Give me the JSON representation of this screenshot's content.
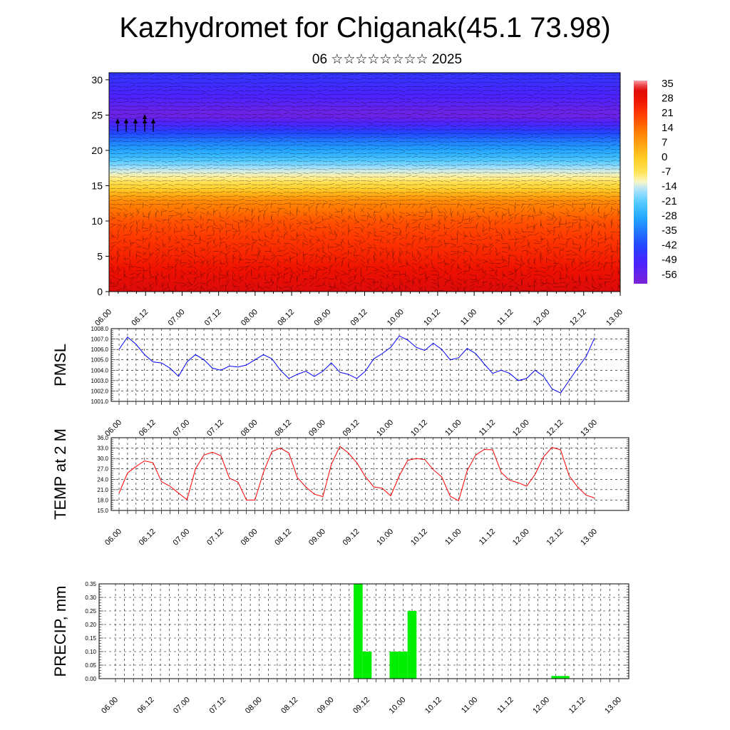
{
  "title": "Kazhydromet for Chiganak(45.1 73.98)",
  "subtitle": "06 ☆☆☆☆☆☆☆☆ 2025",
  "colors": {
    "pressure_line": "#0000ff",
    "temperature_line": "#ff0000",
    "precip_bar": "#00ee00"
  },
  "chart_data": [
    {
      "id": "cross_section",
      "type": "heatmap",
      "description_hint": "Time-height section of temperature (color) with wind barbs",
      "x_tick_labels": [
        "06.00",
        "06.12",
        "07.00",
        "07.12",
        "08.00",
        "08.12",
        "09.00",
        "09.12",
        "10.00",
        "10.12",
        "11.00",
        "11.12",
        "12.00",
        "12.12",
        "13.00"
      ],
      "y_ticks": [
        0,
        5,
        10,
        15,
        20,
        25,
        30
      ],
      "ylim": [
        0,
        31
      ],
      "colorbar": {
        "labels": [
          "35",
          "28",
          "21",
          "14",
          "7",
          "0",
          "-7",
          "-14",
          "-21",
          "-28",
          "-35",
          "-42",
          "-49",
          "-56"
        ],
        "range": [
          -60,
          37
        ]
      },
      "temperature_profile": {
        "height": [
          0,
          5,
          10,
          13,
          15,
          17,
          19,
          21,
          23,
          25,
          27,
          29,
          31
        ],
        "value": [
          33,
          25,
          18,
          10,
          -4,
          -13,
          -24,
          -33,
          -45,
          -58,
          -52,
          -48,
          -45
        ]
      }
    },
    {
      "id": "pmsl",
      "type": "line",
      "ylabel": "PMSL",
      "ylim": [
        1001.0,
        1008.0
      ],
      "y_tick_labels": [
        "1001.0",
        "1002.0",
        "1003.0",
        "1004.0",
        "1005.0",
        "1006.0",
        "1007.0",
        "1008.0"
      ],
      "x_tick_labels": [
        "06.00",
        "06.12",
        "07.00",
        "07.12",
        "08.00",
        "08.12",
        "09.00",
        "09.12",
        "10.00",
        "10.12",
        "11.00",
        "11.12",
        "12.00",
        "12.12",
        "13.00"
      ],
      "x_step_hours": 3,
      "values": [
        1006.0,
        1007.2,
        1006.5,
        1005.5,
        1004.8,
        1004.7,
        1004.2,
        1003.4,
        1004.8,
        1005.5,
        1005.0,
        1004.2,
        1004.0,
        1004.4,
        1004.3,
        1004.5,
        1005.0,
        1005.5,
        1005.1,
        1004.0,
        1003.2,
        1003.6,
        1003.9,
        1003.4,
        1003.9,
        1004.7,
        1003.8,
        1003.6,
        1003.2,
        1003.9,
        1005.1,
        1005.6,
        1006.2,
        1007.3,
        1006.9,
        1006.2,
        1005.9,
        1006.6,
        1006.0,
        1005.0,
        1005.2,
        1006.1,
        1005.6,
        1004.6,
        1003.7,
        1004.0,
        1003.7,
        1003.0,
        1003.2,
        1004.0,
        1003.4,
        1002.2,
        1001.8,
        1003.0,
        1004.2,
        1005.3,
        1007.1
      ]
    },
    {
      "id": "temp2m",
      "type": "line",
      "ylabel": "TEMP at 2 M",
      "ylim": [
        15.0,
        36.0
      ],
      "y_tick_labels": [
        "15.0",
        "18.0",
        "21.0",
        "24.0",
        "27.0",
        "30.0",
        "33.0",
        "36.0"
      ],
      "x_tick_labels": [
        "06.00",
        "06.12",
        "07.00",
        "07.12",
        "08.00",
        "08.12",
        "09.00",
        "09.12",
        "10.00",
        "10.12",
        "11.00",
        "11.12",
        "12.00",
        "12.12",
        "13.00"
      ],
      "x_step_hours": 3,
      "values": [
        20.0,
        25.8,
        27.7,
        29.3,
        28.8,
        23.3,
        22.0,
        20.0,
        18.1,
        27.0,
        31.0,
        31.8,
        30.8,
        24.3,
        23.2,
        18.0,
        18.0,
        26.0,
        32.0,
        33.0,
        31.6,
        24.5,
        21.8,
        19.7,
        19.0,
        28.3,
        33.5,
        31.6,
        28.8,
        24.8,
        21.8,
        21.4,
        19.2,
        25.0,
        29.5,
        30.0,
        29.7,
        26.8,
        24.7,
        19.1,
        17.8,
        26.5,
        31.0,
        32.6,
        32.5,
        26.0,
        23.7,
        23.0,
        22.0,
        25.4,
        30.5,
        33.2,
        32.5,
        25.0,
        21.8,
        19.4,
        18.6
      ]
    },
    {
      "id": "precip",
      "type": "bar",
      "ylabel": "PRECIP, mm",
      "ylim": [
        0.0,
        0.35
      ],
      "y_tick_labels": [
        "0.00",
        "0.05",
        "0.10",
        "0.15",
        "0.20",
        "0.25",
        "0.30",
        "0.35"
      ],
      "x_tick_labels": [
        "06.00",
        "06.12",
        "07.00",
        "07.12",
        "08.00",
        "08.12",
        "09.00",
        "09.12",
        "10.00",
        "10.12",
        "11.00",
        "11.12",
        "12.00",
        "12.12",
        "13.00"
      ],
      "x_step_hours": 3,
      "values": [
        0,
        0,
        0,
        0,
        0,
        0,
        0,
        0,
        0,
        0,
        0,
        0,
        0,
        0,
        0,
        0,
        0,
        0,
        0,
        0,
        0,
        0,
        0,
        0,
        0,
        0,
        0,
        0.35,
        0.1,
        0,
        0,
        0.1,
        0.1,
        0.25,
        0,
        0,
        0,
        0,
        0,
        0,
        0,
        0,
        0,
        0,
        0,
        0,
        0,
        0,
        0,
        0.01,
        0.01,
        0,
        0,
        0,
        0,
        0,
        0
      ]
    }
  ]
}
